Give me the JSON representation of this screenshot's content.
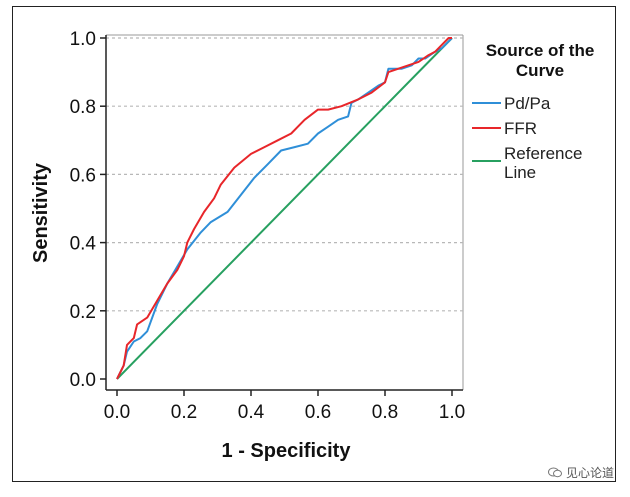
{
  "chart_data": {
    "type": "line",
    "title": "",
    "xlabel": "1 - Specificity",
    "ylabel": "Sensitivity",
    "xlim": [
      0,
      1
    ],
    "ylim": [
      0,
      1
    ],
    "xticks": [
      "0.0",
      "0.2",
      "0.4",
      "0.6",
      "0.8",
      "1.0"
    ],
    "yticks": [
      "0.0",
      "0.2",
      "0.4",
      "0.6",
      "0.8",
      "1.0"
    ],
    "grid": "horizontal dotted",
    "legend": {
      "title_line1": "Source of the",
      "title_line2": "Curve",
      "position": "right"
    },
    "series": [
      {
        "name": "Pd/Pa",
        "label": "Pd/Pa",
        "color": "#2f8fd8",
        "x": [
          0,
          0.02,
          0.03,
          0.05,
          0.07,
          0.09,
          0.12,
          0.15,
          0.18,
          0.21,
          0.25,
          0.28,
          0.33,
          0.37,
          0.41,
          0.45,
          0.49,
          0.53,
          0.57,
          0.6,
          0.63,
          0.66,
          0.69,
          0.7,
          0.72,
          0.75,
          0.78,
          0.8,
          0.81,
          0.85,
          0.88,
          0.9,
          0.92,
          0.95,
          0.97,
          0.99,
          1.0
        ],
        "y": [
          0,
          0.04,
          0.08,
          0.11,
          0.12,
          0.14,
          0.22,
          0.28,
          0.33,
          0.38,
          0.43,
          0.46,
          0.49,
          0.54,
          0.59,
          0.63,
          0.67,
          0.68,
          0.69,
          0.72,
          0.74,
          0.76,
          0.77,
          0.81,
          0.82,
          0.84,
          0.86,
          0.87,
          0.91,
          0.91,
          0.92,
          0.94,
          0.94,
          0.96,
          0.97,
          0.99,
          1.0
        ]
      },
      {
        "name": "FFR",
        "label": "FFR",
        "color": "#e8262a",
        "x": [
          0,
          0.02,
          0.03,
          0.05,
          0.06,
          0.09,
          0.12,
          0.15,
          0.18,
          0.2,
          0.21,
          0.23,
          0.26,
          0.29,
          0.31,
          0.35,
          0.4,
          0.44,
          0.48,
          0.52,
          0.56,
          0.6,
          0.63,
          0.67,
          0.72,
          0.76,
          0.8,
          0.81,
          0.84,
          0.87,
          0.9,
          0.93,
          0.95,
          0.97,
          0.99,
          1.0
        ],
        "y": [
          0,
          0.04,
          0.1,
          0.12,
          0.16,
          0.18,
          0.23,
          0.28,
          0.32,
          0.36,
          0.4,
          0.44,
          0.49,
          0.53,
          0.57,
          0.62,
          0.66,
          0.68,
          0.7,
          0.72,
          0.76,
          0.79,
          0.79,
          0.8,
          0.82,
          0.84,
          0.87,
          0.9,
          0.91,
          0.92,
          0.93,
          0.95,
          0.96,
          0.98,
          1.0,
          1.0
        ]
      },
      {
        "name": "Reference Line",
        "label_line1": "Reference",
        "label_line2": "Line",
        "color": "#27a060",
        "x": [
          0,
          1
        ],
        "y": [
          0,
          1
        ]
      }
    ]
  },
  "watermark": {
    "text": "见心论道"
  }
}
